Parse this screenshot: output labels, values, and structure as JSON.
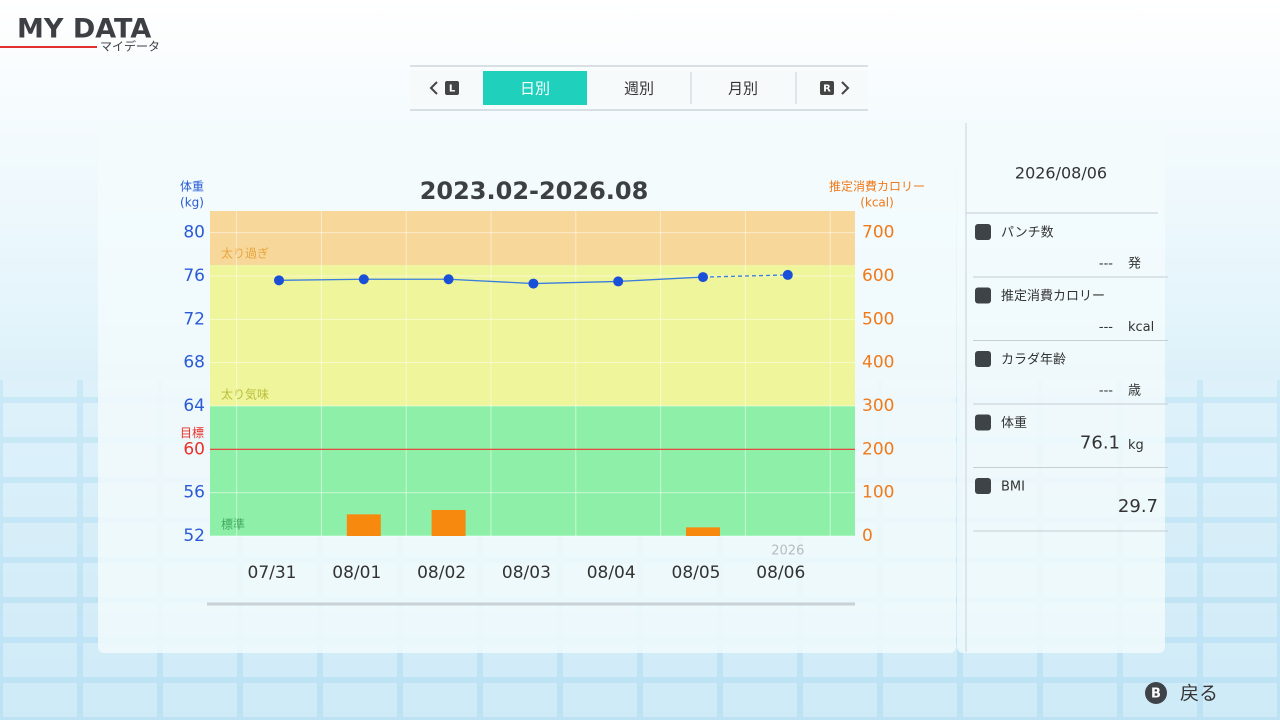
{
  "header": {
    "title": "MY DATA",
    "subtitle": "マイデータ"
  },
  "tabs": {
    "left_button": "L",
    "right_button": "R",
    "items": [
      "日別",
      "週別",
      "月別"
    ],
    "active": 0
  },
  "chart_data": {
    "type": "combo",
    "title": "2023.02-2026.08",
    "ylabel": [
      "体重",
      "(kg)"
    ],
    "y2label": [
      "推定消費カロリー",
      "(kcal)"
    ],
    "categories": [
      "07/31",
      "08/01",
      "08/02",
      "08/03",
      "08/04",
      "08/05",
      "08/06"
    ],
    "year_label": "2026",
    "series": [
      {
        "type": "line",
        "color": "#1a4fd8",
        "values": [
          75.6,
          75.7,
          75.7,
          75.3,
          75.5,
          75.9,
          76.1
        ],
        "dashed_last_segment": true
      },
      {
        "type": "bar",
        "axis": "y2",
        "color": "#f7890f",
        "values": [
          null,
          50,
          60,
          null,
          null,
          20,
          null
        ]
      }
    ],
    "ylim": [
      52,
      82
    ],
    "yticks": [
      52,
      56,
      60,
      64,
      68,
      72,
      76,
      80
    ],
    "y2lim": [
      0,
      750
    ],
    "y2ticks": [
      0,
      100,
      200,
      300,
      400,
      500,
      600,
      700
    ],
    "grid": true,
    "zones": [
      {
        "name": "太り過ぎ",
        "from": 77,
        "to": 82,
        "color": "#f7d79a"
      },
      {
        "name": "太り気味",
        "from": 64,
        "to": 77,
        "color": "#eef59a"
      },
      {
        "name": "標準",
        "from": 52,
        "to": 64,
        "color": "#8ef0a8"
      }
    ],
    "target": {
      "label": "目標",
      "value": 60,
      "color": "#e8322a"
    }
  },
  "side_panel": {
    "date": "2026/08/06",
    "items": [
      {
        "label": "パンチ数",
        "value": "---",
        "unit": "発"
      },
      {
        "label": "推定消費カロリー",
        "value": "---",
        "unit": "kcal"
      },
      {
        "label": "カラダ年齢",
        "value": "---",
        "unit": "歳"
      },
      {
        "label": "体重",
        "value": 76.1,
        "unit": "kg"
      },
      {
        "label": "BMI",
        "value": 29.7
      }
    ]
  },
  "footer": {
    "button": "B",
    "label": "戻る"
  }
}
